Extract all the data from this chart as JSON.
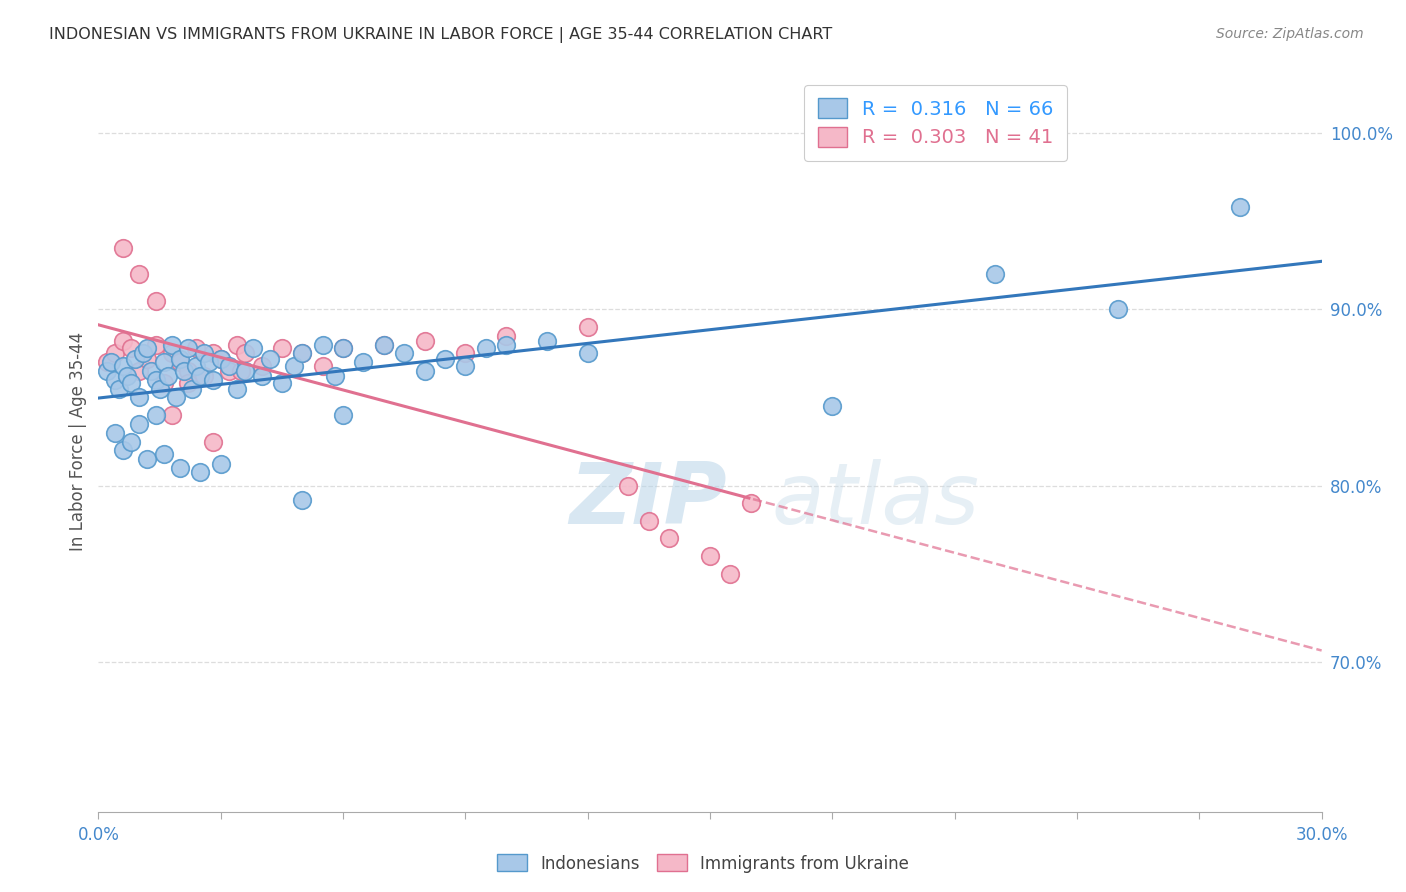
{
  "title": "INDONESIAN VS IMMIGRANTS FROM UKRAINE IN LABOR FORCE | AGE 35-44 CORRELATION CHART",
  "source": "Source: ZipAtlas.com",
  "ylabel": "In Labor Force | Age 35-44",
  "xlim": [
    0.0,
    0.3
  ],
  "ylim": [
    0.615,
    1.035
  ],
  "ytick_right": [
    0.7,
    0.8,
    0.9,
    1.0
  ],
  "blue_color": "#a8c8e8",
  "blue_edge_color": "#5599cc",
  "blue_line_color": "#3377bb",
  "pink_color": "#f5b8c8",
  "pink_edge_color": "#e07090",
  "pink_line_color": "#e07090",
  "watermark_color": "#d4e8f5",
  "legend_R_blue": "0.316",
  "legend_N_blue": "66",
  "legend_R_pink": "0.303",
  "legend_N_pink": "41",
  "legend_value_color": "#3399ff",
  "grid_color": "#dddddd",
  "axis_color": "#aaaaaa",
  "title_color": "#333333",
  "source_color": "#888888",
  "tick_label_color": "#4488cc",
  "ylabel_color": "#555555",
  "bottom_legend_color": "#444444"
}
